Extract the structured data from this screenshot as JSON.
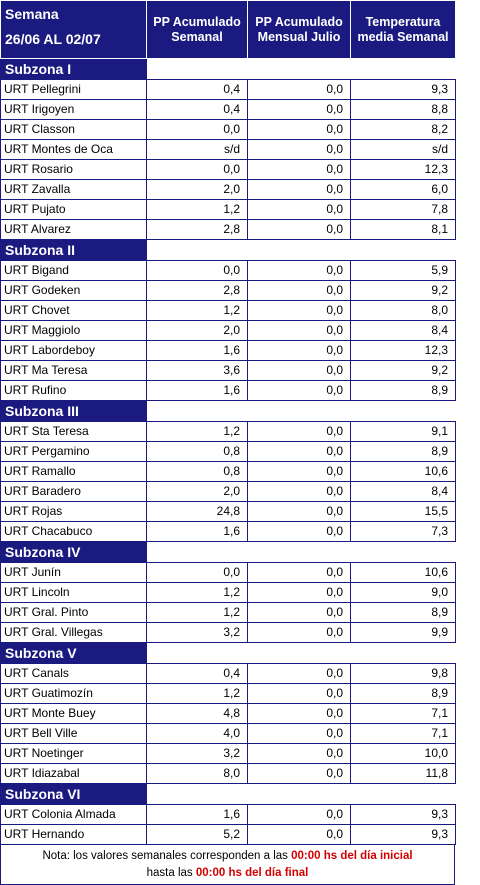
{
  "header": {
    "semana_label": "Semana",
    "period": "26/06 AL 02/07",
    "col_pp_semanal": "PP Acumulado Semanal",
    "col_pp_mensual": "PP Acumulado Mensual Julio",
    "col_temp": "Temperatura media Semanal"
  },
  "subzones": [
    {
      "name": "Subzona I",
      "rows": [
        [
          "URT Pellegrini",
          "0,4",
          "0,0",
          "9,3"
        ],
        [
          "URT Irigoyen",
          "0,4",
          "0,0",
          "8,8"
        ],
        [
          "URT Classon",
          "0,0",
          "0,0",
          "8,2"
        ],
        [
          "URT Montes de Oca",
          "s/d",
          "0,0",
          "s/d"
        ],
        [
          "URT Rosario",
          "0,0",
          "0,0",
          "12,3"
        ],
        [
          "URT Zavalla",
          "2,0",
          "0,0",
          "6,0"
        ],
        [
          "URT Pujato",
          "1,2",
          "0,0",
          "7,8"
        ],
        [
          "URT Alvarez",
          "2,8",
          "0,0",
          "8,1"
        ]
      ]
    },
    {
      "name": "Subzona II",
      "rows": [
        [
          "URT Bigand",
          "0,0",
          "0,0",
          "5,9"
        ],
        [
          "URT Godeken",
          "2,8",
          "0,0",
          "9,2"
        ],
        [
          "URT Chovet",
          "1,2",
          "0,0",
          "8,0"
        ],
        [
          "URT Maggiolo",
          "2,0",
          "0,0",
          "8,4"
        ],
        [
          "URT Labordeboy",
          "1,6",
          "0,0",
          "12,3"
        ],
        [
          "URT Ma Teresa",
          "3,6",
          "0,0",
          "9,2"
        ],
        [
          "URT Rufino",
          "1,6",
          "0,0",
          "8,9"
        ]
      ]
    },
    {
      "name": "Subzona III",
      "rows": [
        [
          "URT Sta Teresa",
          "1,2",
          "0,0",
          "9,1"
        ],
        [
          "URT Pergamino",
          "0,8",
          "0,0",
          "8,9"
        ],
        [
          "URT Ramallo",
          "0,8",
          "0,0",
          "10,6"
        ],
        [
          "URT Baradero",
          "2,0",
          "0,0",
          "8,4"
        ],
        [
          "URT Rojas",
          "24,8",
          "0,0",
          "15,5"
        ],
        [
          "URT Chacabuco",
          "1,6",
          "0,0",
          "7,3"
        ]
      ]
    },
    {
      "name": "Subzona IV",
      "rows": [
        [
          "URT Junín",
          "0,0",
          "0,0",
          "10,6"
        ],
        [
          "URT Lincoln",
          "1,2",
          "0,0",
          "9,0"
        ],
        [
          "URT Gral. Pinto",
          "1,2",
          "0,0",
          "8,9"
        ],
        [
          "URT Gral. Villegas",
          "3,2",
          "0,0",
          "9,9"
        ]
      ]
    },
    {
      "name": "Subzona V",
      "rows": [
        [
          "URT Canals",
          "0,4",
          "0,0",
          "9,8"
        ],
        [
          "URT Guatimozín",
          "1,2",
          "0,0",
          "8,9"
        ],
        [
          "URT Monte Buey",
          "4,8",
          "0,0",
          "7,1"
        ],
        [
          "URT Bell Ville",
          "4,0",
          "0,0",
          "7,1"
        ],
        [
          "URT Noetinger",
          "3,2",
          "0,0",
          "10,0"
        ],
        [
          "URT Idiazabal",
          "8,0",
          "0,0",
          "11,8"
        ]
      ]
    },
    {
      "name": "Subzona VI",
      "rows": [
        [
          "URT Colonia Almada",
          "1,6",
          "0,0",
          "9,3"
        ],
        [
          "URT Hernando",
          "5,2",
          "0,0",
          "9,3"
        ]
      ]
    }
  ],
  "note": {
    "part1": "Nota: los valores semanales corresponden a las ",
    "red1": "00:00 hs del día inicial",
    "part2": "hasta las ",
    "red2": "00:00 hs del día final"
  },
  "colors": {
    "header_bg": "#1a1a80",
    "accent_red": "#d20000"
  }
}
